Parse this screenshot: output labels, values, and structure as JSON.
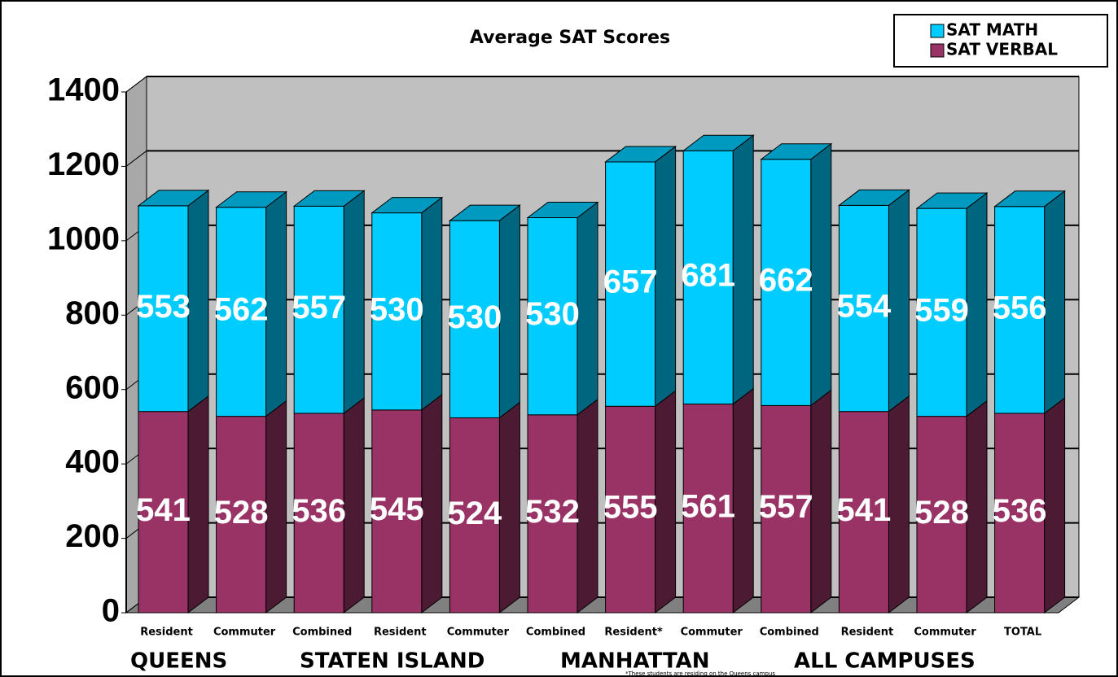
{
  "chart_data": {
    "type": "bar",
    "stacked": true,
    "title": "Average SAT Scores",
    "categories": [
      "Resident",
      "Commuter",
      "Combined",
      "Resident",
      "Commuter",
      "Combined",
      "Resident*",
      "Commuter",
      "Combined",
      "Resident",
      "Commuter",
      "TOTAL"
    ],
    "groups": [
      "QUEENS",
      "STATEN ISLAND",
      "MANHATTAN",
      "ALL CAMPUSES"
    ],
    "series": [
      {
        "name": "SAT VERBAL",
        "color": "#993366",
        "values": [
          541,
          528,
          536,
          545,
          524,
          532,
          555,
          561,
          557,
          541,
          528,
          536
        ]
      },
      {
        "name": "SAT MATH",
        "color": "#00ccff",
        "values": [
          553,
          562,
          557,
          530,
          530,
          530,
          657,
          681,
          662,
          554,
          559,
          556
        ]
      }
    ],
    "ylim": [
      0,
      1400
    ],
    "yticks": [
      0,
      200,
      400,
      600,
      800,
      1000,
      1200,
      1400
    ],
    "grid": true,
    "legend": "top-right",
    "footnote": "*These students are residing on the Queens campus"
  }
}
